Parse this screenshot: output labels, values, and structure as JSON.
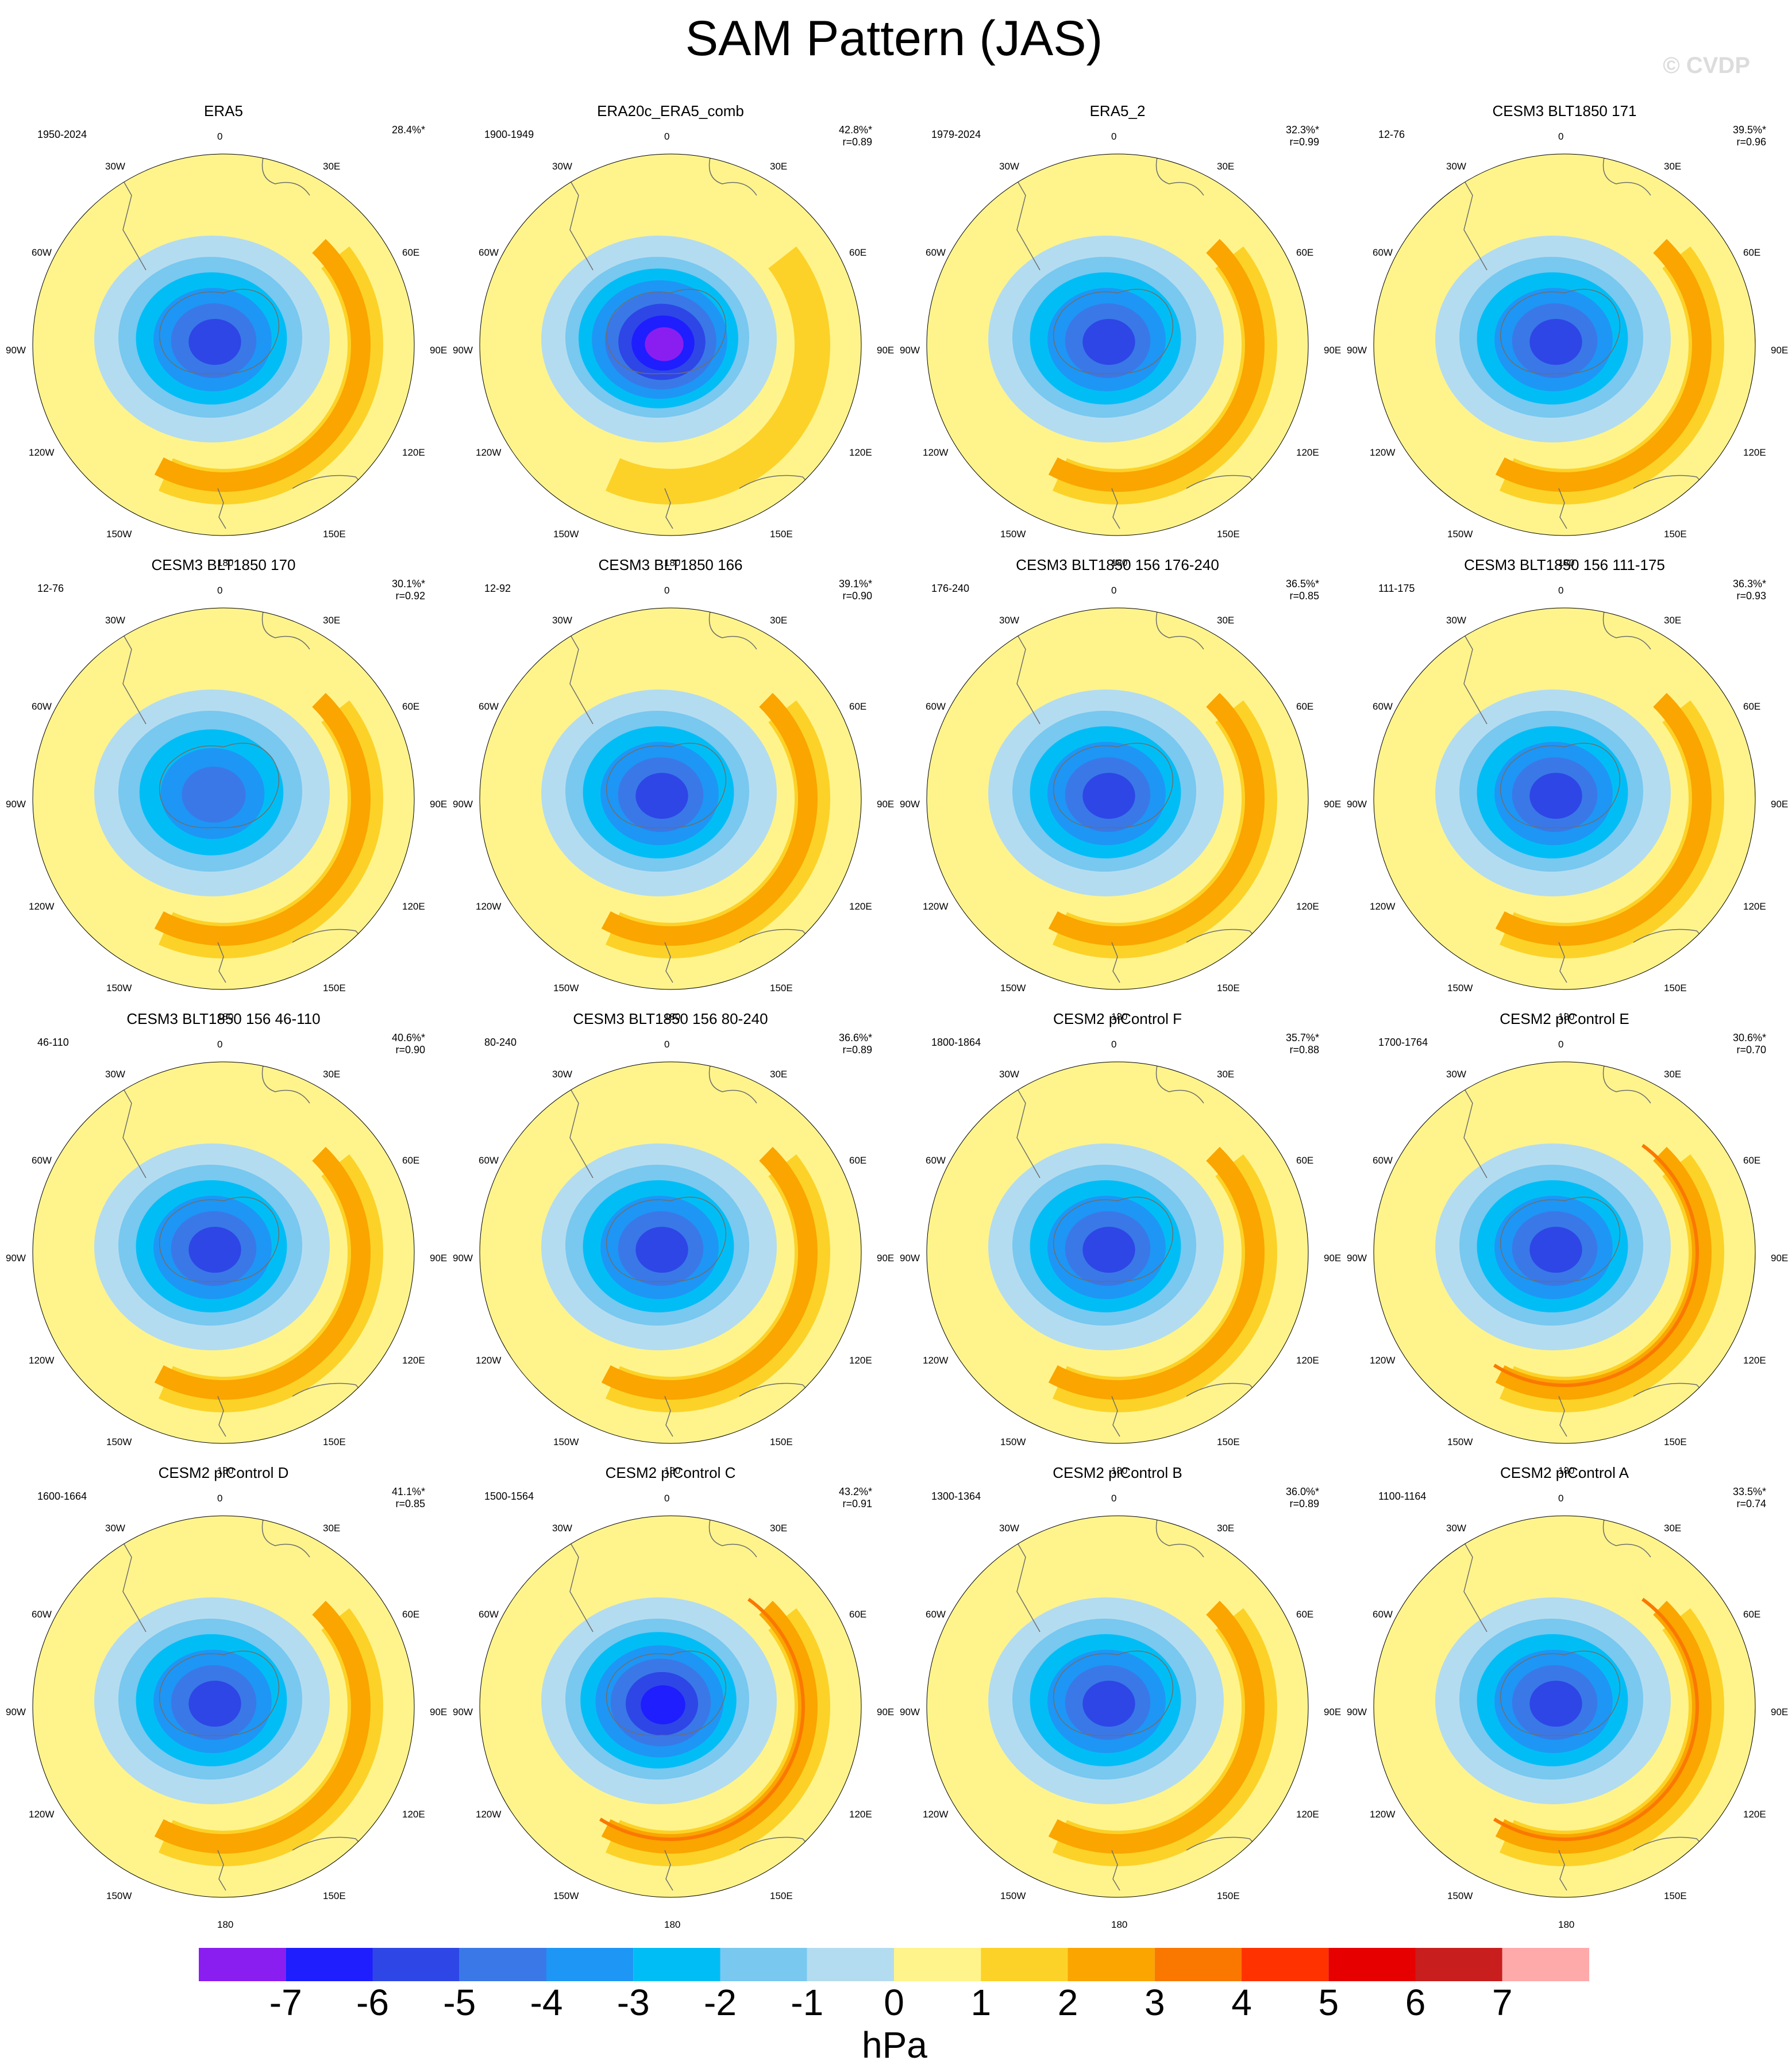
{
  "title": "SAM Pattern (JAS)",
  "watermark": "© CVDP",
  "longitude_labels": [
    "0",
    "30E",
    "60E",
    "90E",
    "120E",
    "150E",
    "180",
    "150W",
    "120W",
    "90W",
    "60W",
    "30W"
  ],
  "panels": [
    {
      "title": "ERA5",
      "period": "1950-2024",
      "variance": "28.4%*",
      "r": "",
      "center_min": -4.5,
      "ring_max": 2.5
    },
    {
      "title": "ERA20c_ERA5_comb",
      "period": "1900-1949",
      "variance": "42.8%*",
      "r": "r=0.89",
      "center_min": -6.5,
      "ring_max": 1.5
    },
    {
      "title": "ERA5_2",
      "period": "1979-2024",
      "variance": "32.3%*",
      "r": "r=0.99",
      "center_min": -5,
      "ring_max": 2.5
    },
    {
      "title": "CESM3 BLT1850 171",
      "period": "12-76",
      "variance": "39.5%*",
      "r": "r=0.96",
      "center_min": -5,
      "ring_max": 2.5
    },
    {
      "title": "CESM3 BLT1850 170",
      "period": "12-76",
      "variance": "30.1%*",
      "r": "r=0.92",
      "center_min": -4,
      "ring_max": 2.5
    },
    {
      "title": "CESM3 BLT1850 166",
      "period": "12-92",
      "variance": "39.1%*",
      "r": "r=0.90",
      "center_min": -5,
      "ring_max": 2.5
    },
    {
      "title": "CESM3 BLT1850 156 176-240",
      "period": "176-240",
      "variance": "36.5%*",
      "r": "r=0.85",
      "center_min": -5,
      "ring_max": 2.5
    },
    {
      "title": "CESM3 BLT1850 156 111-175",
      "period": "111-175",
      "variance": "36.3%*",
      "r": "r=0.93",
      "center_min": -5,
      "ring_max": 2.5
    },
    {
      "title": "CESM3 BLT1850 156 46-110",
      "period": "46-110",
      "variance": "40.6%*",
      "r": "r=0.90",
      "center_min": -5,
      "ring_max": 2.5
    },
    {
      "title": "CESM3 BLT1850 156 80-240",
      "period": "80-240",
      "variance": "36.6%*",
      "r": "r=0.89",
      "center_min": -5,
      "ring_max": 2.5
    },
    {
      "title": "CESM2 piControl F",
      "period": "1800-1864",
      "variance": "35.7%*",
      "r": "r=0.88",
      "center_min": -5,
      "ring_max": 2.5
    },
    {
      "title": "CESM2 piControl E",
      "period": "1700-1764",
      "variance": "30.6%*",
      "r": "r=0.70",
      "center_min": -5,
      "ring_max": 3.5
    },
    {
      "title": "CESM2 piControl D",
      "period": "1600-1664",
      "variance": "41.1%*",
      "r": "r=0.85",
      "center_min": -5,
      "ring_max": 2.5
    },
    {
      "title": "CESM2 piControl C",
      "period": "1500-1564",
      "variance": "43.2%*",
      "r": "r=0.91",
      "center_min": -6,
      "ring_max": 3.5
    },
    {
      "title": "CESM2 piControl B",
      "period": "1300-1364",
      "variance": "36.0%*",
      "r": "r=0.89",
      "center_min": -5,
      "ring_max": 2.5
    },
    {
      "title": "CESM2 piControl A",
      "period": "1100-1164",
      "variance": "33.5%*",
      "r": "r=0.74",
      "center_min": -5,
      "ring_max": 3.5
    }
  ],
  "colorbar": {
    "unit": "hPa",
    "ticks": [
      "-7",
      "-6",
      "-5",
      "-4",
      "-3",
      "-2",
      "-1",
      "0",
      "1",
      "2",
      "3",
      "4",
      "5",
      "6",
      "7"
    ],
    "colors": [
      "#8a1ef0",
      "#1e1eff",
      "#2e46e6",
      "#3a78e8",
      "#1e96f5",
      "#00bef5",
      "#78c8f0",
      "#b4dcf0",
      "#fff48c",
      "#fcd228",
      "#faa500",
      "#fa7800",
      "#ff3200",
      "#e60000",
      "#c81e1e",
      "#ffaaaa"
    ]
  }
}
